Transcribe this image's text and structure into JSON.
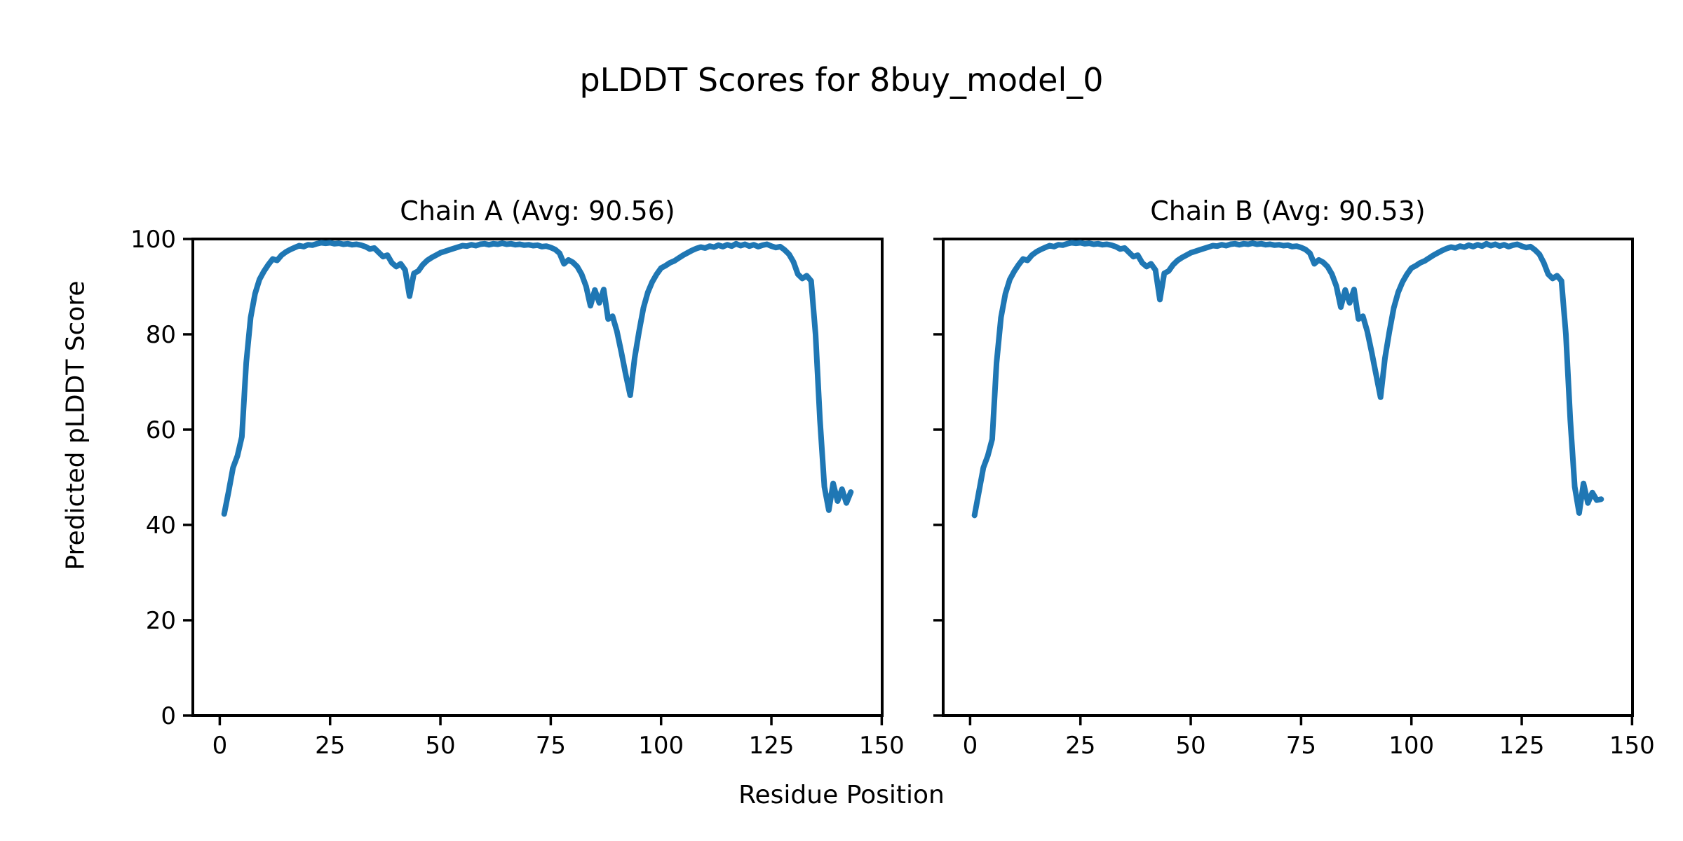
{
  "figure": {
    "suptitle": "pLDDT Scores for 8buy_model_0",
    "xlabel": "Residue Position",
    "ylabel": "Predicted pLDDT Score",
    "background_color": "#ffffff",
    "text_color": "#000000",
    "spine_color": "#000000"
  },
  "chart_data": [
    {
      "type": "line",
      "title": "Chain A (Avg: 90.56)",
      "chain": "A",
      "avg_plddt": 90.56,
      "line_color": "#1f77b4",
      "x_start": 1,
      "x_step": 1,
      "xlim": [
        -6.1,
        150.1
      ],
      "ylim": [
        0,
        100
      ],
      "xticks": [
        0,
        25,
        50,
        75,
        100,
        125,
        150
      ],
      "yticks": [
        0,
        20,
        40,
        60,
        80,
        100
      ],
      "ytick_labels_visible": true,
      "grid": false,
      "legend": null,
      "values": [
        42.3,
        47.0,
        52.0,
        54.5,
        58.5,
        74.0,
        83.5,
        88.5,
        91.5,
        93.2,
        94.6,
        95.8,
        95.5,
        96.6,
        97.3,
        97.8,
        98.2,
        98.6,
        98.4,
        98.8,
        98.7,
        99.0,
        99.2,
        99.1,
        99.2,
        99.0,
        99.1,
        98.9,
        99.0,
        98.8,
        98.9,
        98.7,
        98.4,
        97.9,
        98.1,
        97.2,
        96.3,
        96.6,
        95.0,
        94.2,
        94.8,
        93.5,
        88.0,
        92.8,
        93.3,
        94.6,
        95.5,
        96.1,
        96.6,
        97.1,
        97.4,
        97.7,
        98.0,
        98.3,
        98.6,
        98.5,
        98.8,
        98.6,
        98.9,
        99.0,
        98.8,
        99.0,
        98.9,
        99.1,
        98.9,
        99.0,
        98.8,
        98.9,
        98.7,
        98.8,
        98.6,
        98.7,
        98.4,
        98.5,
        98.2,
        97.8,
        97.0,
        94.8,
        95.6,
        95.1,
        94.2,
        92.6,
        90.1,
        86.0,
        89.3,
        86.6,
        89.4,
        83.2,
        83.8,
        80.6,
        76.2,
        71.5,
        67.2,
        75.0,
        80.5,
        85.5,
        88.8,
        91.0,
        92.6,
        93.9,
        94.4,
        95.0,
        95.4,
        96.0,
        96.6,
        97.1,
        97.6,
        98.0,
        98.3,
        98.1,
        98.5,
        98.3,
        98.7,
        98.4,
        98.8,
        98.5,
        99.0,
        98.6,
        98.9,
        98.5,
        98.8,
        98.4,
        98.7,
        98.9,
        98.5,
        98.2,
        98.4,
        97.7,
        96.8,
        95.2,
        92.6,
        91.7,
        92.3,
        91.2,
        80.0,
        62.0,
        48.0,
        43.1,
        48.7,
        45.0,
        47.5,
        44.6,
        46.9
      ]
    },
    {
      "type": "line",
      "title": "Chain B (Avg: 90.53)",
      "chain": "B",
      "avg_plddt": 90.53,
      "line_color": "#1f77b4",
      "x_start": 1,
      "x_step": 1,
      "xlim": [
        -6.1,
        150.1
      ],
      "ylim": [
        0,
        100
      ],
      "xticks": [
        0,
        25,
        50,
        75,
        100,
        125,
        150
      ],
      "yticks": [
        0,
        20,
        40,
        60,
        80,
        100
      ],
      "ytick_labels_visible": false,
      "grid": false,
      "legend": null,
      "values": [
        42.0,
        47.0,
        52.0,
        54.5,
        58.0,
        74.0,
        83.5,
        88.5,
        91.5,
        93.2,
        94.6,
        95.8,
        95.5,
        96.6,
        97.3,
        97.8,
        98.2,
        98.6,
        98.4,
        98.8,
        98.7,
        99.0,
        99.2,
        99.1,
        99.2,
        99.0,
        99.1,
        98.9,
        99.0,
        98.8,
        98.9,
        98.7,
        98.4,
        97.9,
        98.1,
        97.2,
        96.3,
        96.6,
        95.0,
        94.2,
        94.8,
        93.5,
        87.3,
        92.8,
        93.3,
        94.6,
        95.5,
        96.1,
        96.6,
        97.1,
        97.4,
        97.7,
        98.0,
        98.3,
        98.6,
        98.5,
        98.8,
        98.6,
        98.9,
        99.0,
        98.8,
        99.0,
        98.9,
        99.1,
        98.9,
        99.0,
        98.8,
        98.9,
        98.7,
        98.8,
        98.6,
        98.7,
        98.4,
        98.5,
        98.2,
        97.8,
        97.0,
        94.8,
        95.6,
        95.1,
        94.2,
        92.6,
        90.1,
        85.7,
        89.3,
        86.6,
        89.4,
        83.2,
        83.8,
        80.6,
        76.2,
        71.5,
        66.8,
        75.0,
        80.5,
        85.5,
        88.8,
        91.0,
        92.6,
        93.9,
        94.4,
        95.0,
        95.4,
        96.0,
        96.6,
        97.1,
        97.6,
        98.0,
        98.3,
        98.1,
        98.5,
        98.3,
        98.7,
        98.4,
        98.8,
        98.5,
        99.0,
        98.6,
        98.9,
        98.5,
        98.8,
        98.4,
        98.7,
        98.9,
        98.5,
        98.2,
        98.4,
        97.7,
        96.8,
        95.0,
        92.6,
        91.7,
        92.3,
        91.2,
        80.0,
        62.0,
        48.0,
        42.5,
        48.7,
        44.6,
        46.8,
        45.2,
        45.4
      ]
    }
  ]
}
